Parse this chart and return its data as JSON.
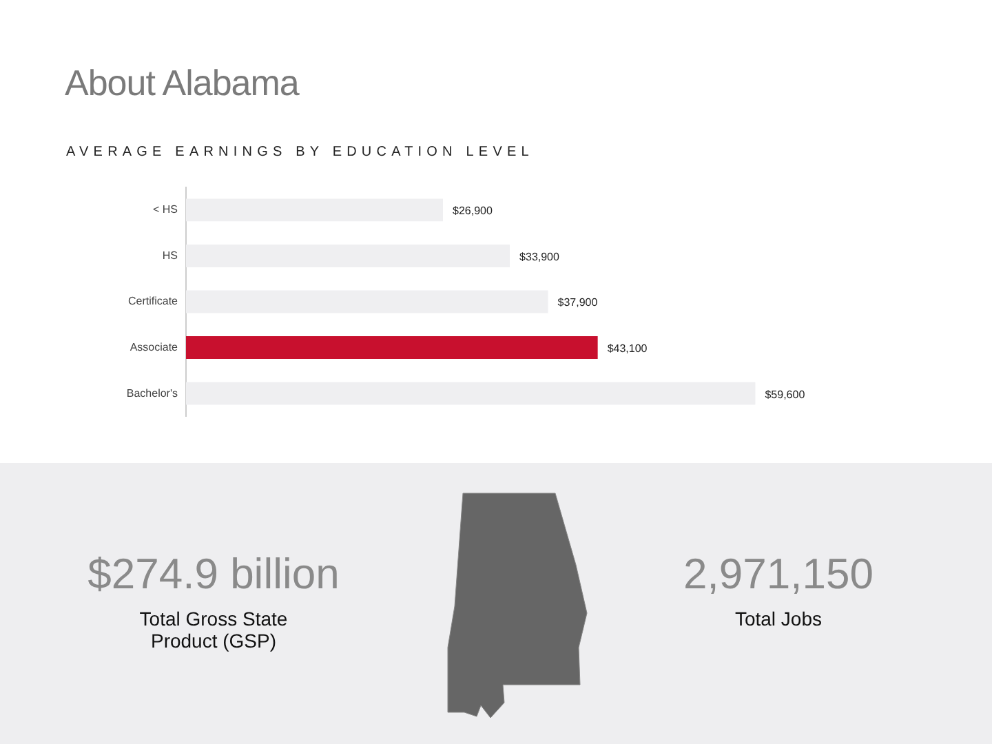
{
  "chart_data": [
    {
      "type": "bar",
      "orientation": "horizontal",
      "title": "About Alabama",
      "subtitle": "AVERAGE EARNINGS BY EDUCATION LEVEL",
      "categories": [
        "< HS",
        "HS",
        "Certificate",
        "Associate",
        "Bachelor's"
      ],
      "values": [
        26900,
        33900,
        37900,
        43100,
        59600
      ],
      "colors": [
        "#efeff1",
        "#efeff1",
        "#efeff1",
        "#c8102e",
        "#efeff1"
      ],
      "value_labels": [
        "$26,900",
        "$33,900",
        "$37,900",
        "$43,100",
        "$59,600"
      ],
      "tick_labels": "y"
    },
    {
      "type": "other",
      "annotations": [
        "$274.9 billion",
        "Total Gross State Product (GSP)",
        "2,971,150",
        "Total Jobs"
      ]
    }
  ]
}
